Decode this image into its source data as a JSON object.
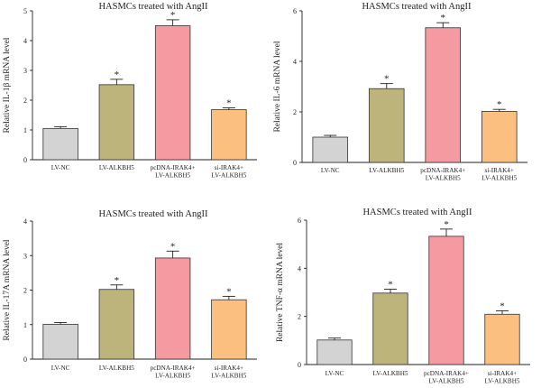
{
  "chart_data": [
    {
      "type": "bar",
      "title": "HASMCs treated with AngII",
      "ylabel": "Relative IL-1β mRNA level",
      "ylim": [
        0,
        5
      ],
      "yticks": [
        "0",
        "1",
        "2",
        "3",
        "4",
        "5"
      ],
      "categories": [
        [
          "LV-NC"
        ],
        [
          "LV-ALKBH5"
        ],
        [
          "pcDNA-IRAK4+",
          "LV-ALKBH5"
        ],
        [
          "si-IRAK4+",
          "LV-ALKBH5"
        ]
      ],
      "values": [
        1.05,
        2.52,
        4.5,
        1.68
      ],
      "errors": [
        0.06,
        0.18,
        0.2,
        0.06
      ],
      "significance": [
        "",
        "*",
        "*",
        "*"
      ],
      "colors": [
        "#d3d3d3",
        "#bcb47a",
        "#f49aa0",
        "#fbbf80"
      ]
    },
    {
      "type": "bar",
      "title": "HASMCs treated with AngII",
      "ylabel": "Relative IL-6 mRNA level",
      "ylim": [
        0,
        6
      ],
      "yticks": [
        "0",
        "2",
        "4",
        "6"
      ],
      "categories": [
        [
          "LV-NC"
        ],
        [
          "LV-ALKBH5"
        ],
        [
          "pcDNA-IRAK4+",
          "LV-ALKBH5"
        ],
        [
          "si-IRAK4+",
          "LV-ALKBH5"
        ]
      ],
      "values": [
        1.0,
        2.92,
        5.33,
        2.02
      ],
      "errors": [
        0.07,
        0.2,
        0.2,
        0.08
      ],
      "significance": [
        "",
        "*",
        "*",
        "*"
      ],
      "colors": [
        "#d3d3d3",
        "#bcb47a",
        "#f49aa0",
        "#fbbf80"
      ]
    },
    {
      "type": "bar",
      "title": "HASMCs treated with AngII",
      "ylabel": "Relative IL-17A mRNA level",
      "ylim": [
        0,
        4
      ],
      "yticks": [
        "0",
        "1",
        "2",
        "3",
        "4"
      ],
      "categories": [
        [
          "LV-NC"
        ],
        [
          "LV-ALKBH5"
        ],
        [
          "pcDNA-IRAK4+",
          "LV-ALKBH5"
        ],
        [
          "si-IRAK4+",
          "LV-ALKBH5"
        ]
      ],
      "values": [
        1.01,
        2.02,
        2.93,
        1.72
      ],
      "errors": [
        0.05,
        0.13,
        0.2,
        0.1
      ],
      "significance": [
        "",
        "*",
        "*",
        "*"
      ],
      "colors": [
        "#d3d3d3",
        "#bcb47a",
        "#f49aa0",
        "#fbbf80"
      ]
    },
    {
      "type": "bar",
      "title": "HASMCs treated with AngII",
      "ylabel": "Relative TNF-α mRNA level",
      "ylim": [
        0,
        6
      ],
      "yticks": [
        "0",
        "2",
        "4",
        "6"
      ],
      "categories": [
        [
          "LV-NC"
        ],
        [
          "LV-ALKBH5"
        ],
        [
          "pcDNA-IRAK4+",
          "LV-ALKBH5"
        ],
        [
          "si-IRAK4+",
          "LV-ALKBH5"
        ]
      ],
      "values": [
        1.02,
        2.97,
        5.33,
        2.09
      ],
      "errors": [
        0.08,
        0.16,
        0.3,
        0.14
      ],
      "significance": [
        "",
        "*",
        "*",
        "*"
      ],
      "colors": [
        "#d3d3d3",
        "#bcb47a",
        "#f49aa0",
        "#fbbf80"
      ]
    }
  ]
}
